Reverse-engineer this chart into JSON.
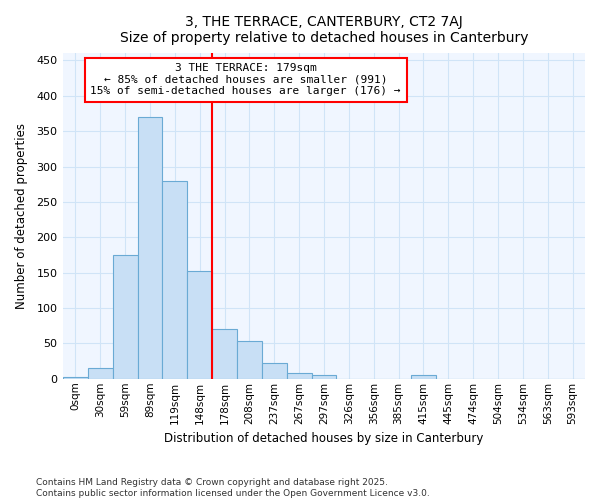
{
  "title": "3, THE TERRACE, CANTERBURY, CT2 7AJ",
  "subtitle": "Size of property relative to detached houses in Canterbury",
  "xlabel": "Distribution of detached houses by size in Canterbury",
  "ylabel": "Number of detached properties",
  "bar_color": "#c8dff5",
  "bar_edge_color": "#6aaad4",
  "fig_bg_color": "#ffffff",
  "ax_bg_color": "#f0f6ff",
  "grid_color": "#d0e4f7",
  "categories": [
    "0sqm",
    "30sqm",
    "59sqm",
    "89sqm",
    "119sqm",
    "148sqm",
    "178sqm",
    "208sqm",
    "237sqm",
    "267sqm",
    "297sqm",
    "326sqm",
    "356sqm",
    "385sqm",
    "415sqm",
    "445sqm",
    "474sqm",
    "504sqm",
    "534sqm",
    "563sqm",
    "593sqm"
  ],
  "values": [
    2,
    15,
    175,
    370,
    280,
    152,
    70,
    53,
    22,
    8,
    5,
    0,
    0,
    0,
    6,
    0,
    0,
    0,
    0,
    0,
    0
  ],
  "ylim": [
    0,
    460
  ],
  "yticks": [
    0,
    50,
    100,
    150,
    200,
    250,
    300,
    350,
    400,
    450
  ],
  "marker_bin_index": 6,
  "annotation_lines": [
    "3 THE TERRACE: 179sqm",
    "← 85% of detached houses are smaller (991)",
    "15% of semi-detached houses are larger (176) →"
  ],
  "footer_lines": [
    "Contains HM Land Registry data © Crown copyright and database right 2025.",
    "Contains public sector information licensed under the Open Government Licence v3.0."
  ]
}
